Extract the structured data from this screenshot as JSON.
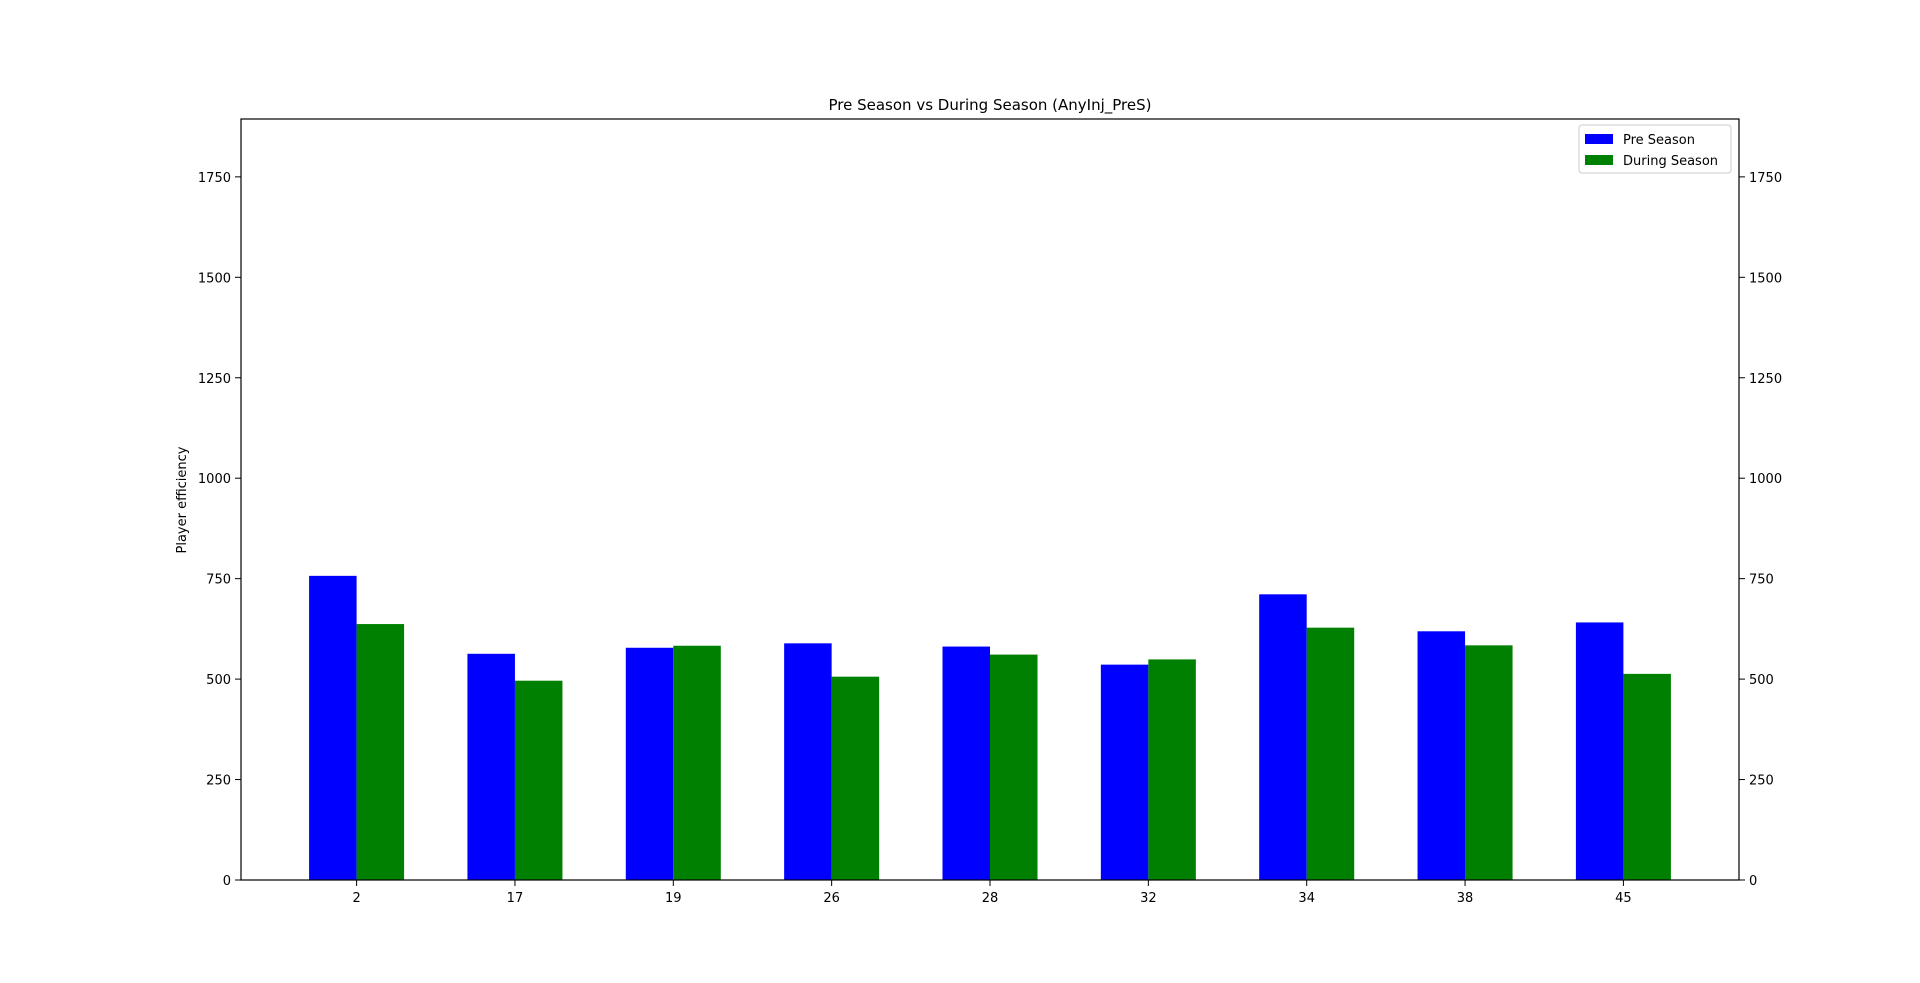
{
  "chart_data": {
    "type": "bar",
    "title": "Pre Season vs During Season (AnyInj_PreS)",
    "xlabel": "",
    "ylabel": "Player efficiency",
    "categories": [
      "2",
      "17",
      "19",
      "26",
      "28",
      "32",
      "34",
      "38",
      "45"
    ],
    "series": [
      {
        "name": "Pre Season",
        "color": "#0000ff",
        "values": [
          757,
          563,
          578,
          589,
          581,
          536,
          711,
          619,
          641
        ]
      },
      {
        "name": "During Season",
        "color": "#008000",
        "values": [
          637,
          496,
          583,
          506,
          561,
          549,
          628,
          584,
          513
        ]
      }
    ],
    "ylim": [
      0,
      1894
    ],
    "yticks": [
      0,
      250,
      500,
      750,
      1000,
      1250,
      1500,
      1750
    ],
    "right_axis_ticks": true,
    "grid": false,
    "legend_position": "top-right"
  }
}
